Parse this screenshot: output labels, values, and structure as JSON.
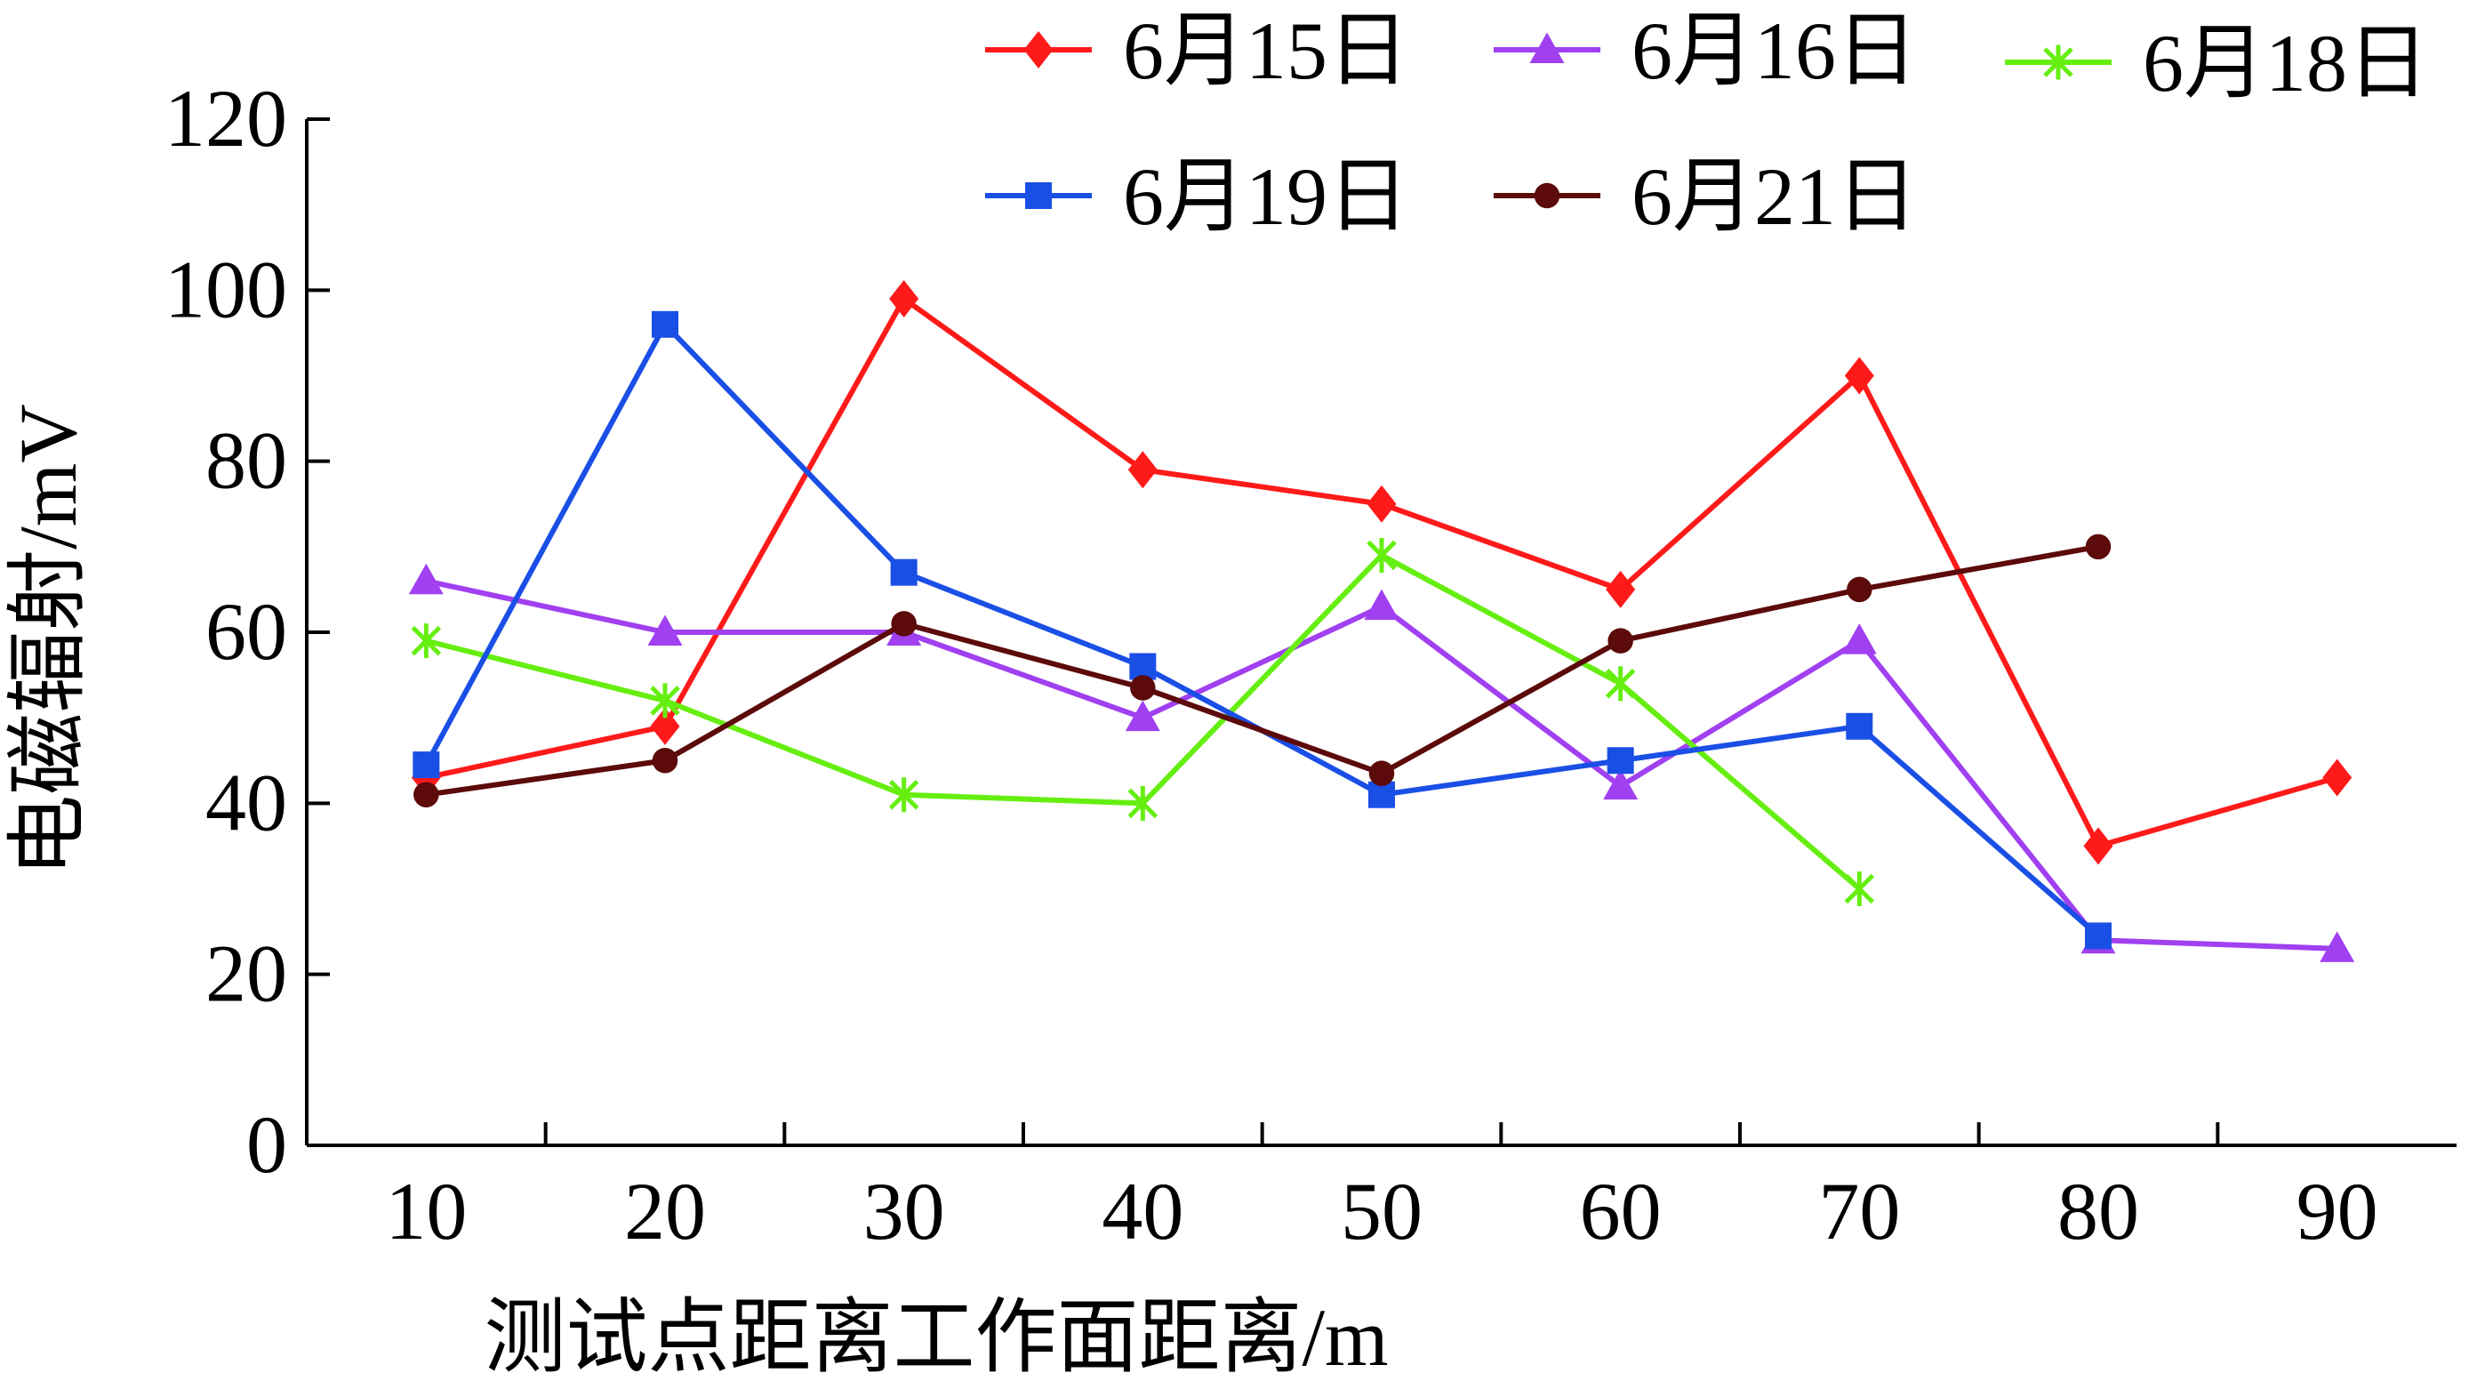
{
  "chart_data": {
    "type": "line",
    "title": "",
    "xlabel": "测试点距离工作面距离/m",
    "ylabel": "电磁辐射/mV",
    "categories": [
      "10",
      "20",
      "30",
      "40",
      "50",
      "60",
      "70",
      "80",
      "90"
    ],
    "ylim": [
      0,
      120
    ],
    "yticks": [
      "0",
      "20",
      "40",
      "60",
      "80",
      "100",
      "120"
    ],
    "grid": false,
    "legend_position": "top",
    "series": [
      {
        "name": "6月15日",
        "color": "#ff1a1a",
        "marker": "diamond",
        "values": [
          43,
          49,
          99,
          79,
          75,
          65,
          90,
          35,
          43
        ]
      },
      {
        "name": "6月16日",
        "color": "#a040f0",
        "marker": "triangle",
        "values": [
          66,
          60,
          60,
          50,
          63,
          42,
          59,
          24,
          23
        ]
      },
      {
        "name": "6月18日",
        "color": "#66ee11",
        "marker": "asterisk",
        "values": [
          59,
          52,
          41,
          40,
          69,
          54,
          30,
          null,
          null
        ]
      },
      {
        "name": "6月19日",
        "color": "#1a4fe6",
        "marker": "square",
        "values": [
          44.5,
          96,
          67,
          56,
          41,
          45,
          49,
          24.5,
          null
        ]
      },
      {
        "name": "6月21日",
        "color": "#5c0a0a",
        "marker": "circle",
        "values": [
          41,
          45,
          61,
          53.5,
          43.5,
          59,
          65,
          70,
          null
        ]
      }
    ]
  }
}
